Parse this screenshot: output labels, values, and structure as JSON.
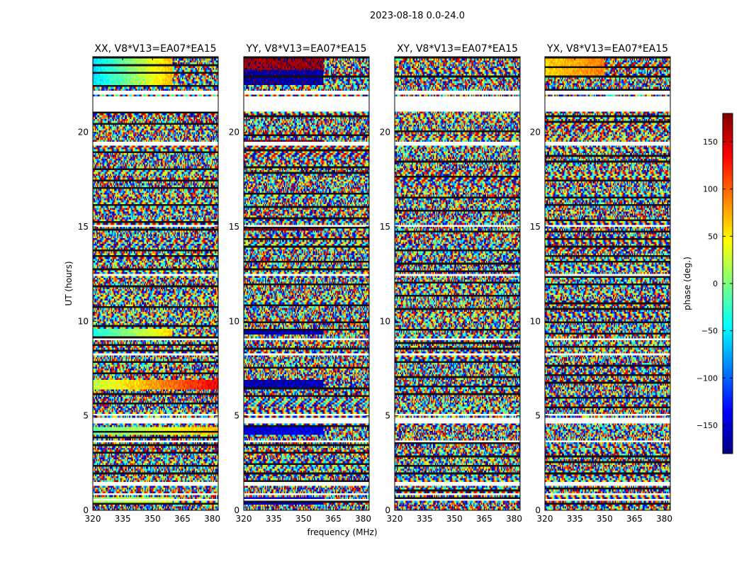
{
  "figure": {
    "suptitle": "2023-08-18 0.0-24.0",
    "xlabel": "frequency (MHz)",
    "ylabel": "UT (hours)"
  },
  "colorbar": {
    "label": "phase (deg.)",
    "range": [
      -180,
      180
    ],
    "ticks": [
      150,
      100,
      50,
      0,
      -50,
      -100,
      -150
    ],
    "tick_labels": [
      "150",
      "100",
      "50",
      "0",
      "−50",
      "−100",
      "−150"
    ],
    "colormap": "jet",
    "colors": [
      "#00007f",
      "#0000ff",
      "#007fff",
      "#00ffff",
      "#7fff7f",
      "#ffff00",
      "#ff7f00",
      "#ff0000",
      "#7f0000"
    ]
  },
  "chart_data": [
    {
      "type": "heatmap",
      "title": "XX, V8*V13=EA07*EA15",
      "xlim": [
        320,
        383
      ],
      "ylim": [
        0,
        24
      ],
      "xticks": [
        320,
        335,
        350,
        365,
        380
      ],
      "xtick_labels": [
        "320",
        "335",
        "350",
        "365",
        "380"
      ],
      "yticks": [
        0,
        5,
        10,
        15,
        20
      ],
      "ytick_labels": [
        "0",
        "5",
        "10",
        "15",
        "20"
      ],
      "value": "phase (deg.)",
      "coherent_bands": [
        {
          "ut": [
            22.5,
            24.0
          ],
          "phase_start": -60,
          "phase_end": 70,
          "freq_end": 360
        },
        {
          "ut": [
            9.2,
            9.6
          ],
          "phase_start": -40,
          "phase_end": 60,
          "freq_end": 360
        },
        {
          "ut": [
            6.4,
            6.9
          ],
          "phase_start": 20,
          "phase_end": 140,
          "freq_end": 383
        },
        {
          "ut": [
            4.0,
            4.4
          ],
          "phase_start": -10,
          "phase_end": 70,
          "freq_end": 383
        },
        {
          "ut": [
            0.3,
            0.7
          ],
          "phase_start": 10,
          "phase_end": 30,
          "freq_end": 360
        }
      ],
      "flagged_ut": [
        [
          22.0,
          22.2
        ],
        [
          21.2,
          21.8
        ],
        [
          19.4,
          19.5
        ],
        [
          15.0,
          15.1
        ],
        [
          12.4,
          12.5
        ],
        [
          9.0,
          9.1
        ],
        [
          8.2,
          8.25
        ],
        [
          5.0,
          5.1
        ],
        [
          4.6,
          4.9
        ],
        [
          3.6,
          3.7
        ],
        [
          1.4,
          1.5
        ],
        [
          0.8,
          0.85
        ],
        [
          0.55,
          0.6
        ]
      ]
    },
    {
      "type": "heatmap",
      "title": "YY, V8*V13=EA07*EA15",
      "xlim": [
        320,
        383
      ],
      "ylim": [
        0,
        24
      ],
      "xticks": [
        320,
        335,
        350,
        365,
        380
      ],
      "xtick_labels": [
        "320",
        "335",
        "350",
        "365",
        "380"
      ],
      "yticks": [
        0,
        5,
        10,
        15,
        20
      ],
      "ytick_labels": [
        "0",
        "5",
        "10",
        "15",
        "20"
      ],
      "value": "phase (deg.)",
      "coherent_bands": [
        {
          "ut": [
            23.3,
            24.0
          ],
          "phase_start": 170,
          "phase_end": 170,
          "freq_end": 360
        },
        {
          "ut": [
            22.5,
            23.3
          ],
          "phase_start": -170,
          "phase_end": -165,
          "freq_end": 360
        },
        {
          "ut": [
            19.3,
            19.6
          ],
          "phase_start": 175,
          "phase_end": 175,
          "freq_end": 360
        },
        {
          "ut": [
            14.8,
            15.0
          ],
          "phase_start": 170,
          "phase_end": 170,
          "freq_end": 360
        },
        {
          "ut": [
            9.3,
            9.6
          ],
          "phase_start": -165,
          "phase_end": -160,
          "freq_end": 360
        },
        {
          "ut": [
            6.4,
            6.9
          ],
          "phase_start": -165,
          "phase_end": -160,
          "freq_end": 360
        },
        {
          "ut": [
            4.0,
            4.4
          ],
          "phase_start": -150,
          "phase_end": -140,
          "freq_end": 360
        },
        {
          "ut": [
            0.3,
            0.7
          ],
          "phase_start": -150,
          "phase_end": -150,
          "freq_end": 360
        }
      ],
      "flagged_ut": [
        [
          22.0,
          22.2
        ],
        [
          21.2,
          21.8
        ],
        [
          19.4,
          19.5
        ],
        [
          15.0,
          15.1
        ],
        [
          12.4,
          12.5
        ],
        [
          9.0,
          9.1
        ],
        [
          8.2,
          8.25
        ],
        [
          5.0,
          5.1
        ],
        [
          4.6,
          4.9
        ],
        [
          3.6,
          3.7
        ],
        [
          1.4,
          1.5
        ],
        [
          0.8,
          0.85
        ],
        [
          0.55,
          0.6
        ]
      ]
    },
    {
      "type": "heatmap",
      "title": "XY, V8*V13=EA07*EA15",
      "xlim": [
        320,
        383
      ],
      "ylim": [
        0,
        24
      ],
      "xticks": [
        320,
        335,
        350,
        365,
        380
      ],
      "xtick_labels": [
        "320",
        "335",
        "350",
        "365",
        "380"
      ],
      "yticks": [
        0,
        5,
        10,
        15,
        20
      ],
      "ytick_labels": [
        "0",
        "5",
        "10",
        "15",
        "20"
      ],
      "value": "phase (deg.)",
      "coherent_bands": [],
      "flagged_ut": [
        [
          22.0,
          22.2
        ],
        [
          21.2,
          21.8
        ],
        [
          19.4,
          19.5
        ],
        [
          15.0,
          15.1
        ],
        [
          12.4,
          12.5
        ],
        [
          9.0,
          9.1
        ],
        [
          8.2,
          8.25
        ],
        [
          5.0,
          5.1
        ],
        [
          4.6,
          4.9
        ],
        [
          3.6,
          3.7
        ],
        [
          1.4,
          1.5
        ],
        [
          0.8,
          0.85
        ],
        [
          0.55,
          0.6
        ]
      ]
    },
    {
      "type": "heatmap",
      "title": "YX, V8*V13=EA07*EA15",
      "xlim": [
        320,
        383
      ],
      "ylim": [
        0,
        24
      ],
      "xticks": [
        320,
        335,
        350,
        365,
        380
      ],
      "xtick_labels": [
        "320",
        "335",
        "350",
        "365",
        "380"
      ],
      "yticks": [
        0,
        5,
        10,
        15,
        20
      ],
      "ytick_labels": [
        "0",
        "5",
        "10",
        "15",
        "20"
      ],
      "value": "phase (deg.)",
      "coherent_bands": [
        {
          "ut": [
            23.0,
            24.0
          ],
          "phase_start": 60,
          "phase_end": 90,
          "freq_end": 350
        }
      ],
      "flagged_ut": [
        [
          22.0,
          22.2
        ],
        [
          21.2,
          21.8
        ],
        [
          19.4,
          19.5
        ],
        [
          15.0,
          15.1
        ],
        [
          12.4,
          12.5
        ],
        [
          9.0,
          9.1
        ],
        [
          8.2,
          8.25
        ],
        [
          5.0,
          5.1
        ],
        [
          4.6,
          4.9
        ],
        [
          3.6,
          3.7
        ],
        [
          1.4,
          1.5
        ],
        [
          0.8,
          0.85
        ],
        [
          0.55,
          0.6
        ]
      ]
    }
  ]
}
